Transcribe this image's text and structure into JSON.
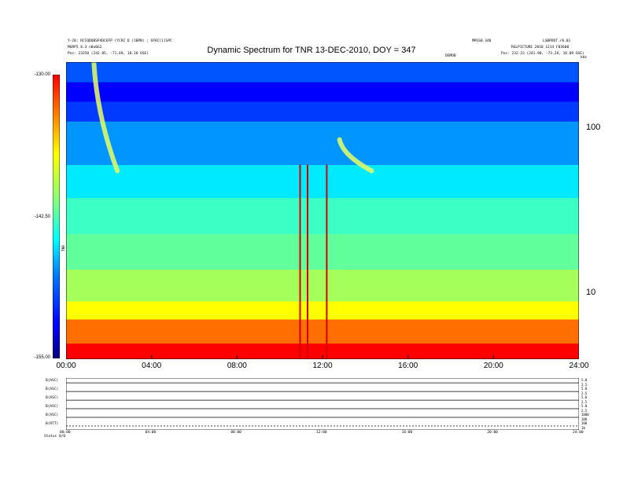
{
  "header": {
    "left_line1": "Y-20: RCIQDOBSP4DC6FP (YCRI D (1BPN) ; OFKC[1]SPC",
    "left_line2": "MGRP5 8.3 n0u0G2",
    "left_line3": "Pos: 23250 (242.85, -71.69, 18.18 OSE)",
    "center_small": "DEMOB",
    "right_line1_a": "MPGS0.340",
    "right_line1_b": "LSBPDOT.r0.01",
    "right_line2": "RGLPICTURE 2010 1214 F03600",
    "right_line3": "Pos: 232.23 (241.90, -73.28, 18.09 GSE)",
    "right_unit": "kHz"
  },
  "chart_data": {
    "type": "heatmap",
    "title": "Dynamic Spectrum for TNR 13-DEC-2010, DOY = 347",
    "x": {
      "unit": "hours",
      "range": [
        0,
        24
      ],
      "tick_labels": [
        "00:00",
        "04:00",
        "08:00",
        "12:00",
        "16:00",
        "20:00",
        "24:00"
      ],
      "tick_values": [
        0,
        4,
        8,
        12,
        16,
        20,
        24
      ]
    },
    "y": {
      "scale": "log",
      "unit": "kHz",
      "range": [
        4,
        250
      ],
      "tick_labels": [
        "100",
        "10"
      ],
      "tick_values": [
        100,
        10
      ]
    },
    "colorbar": {
      "label": "TNR",
      "range": [
        -155.0,
        -130.0
      ],
      "tick_labels": [
        "-130.00",
        "-142.50",
        "-155.00"
      ],
      "tick_values": [
        -130,
        -142.5,
        -155
      ],
      "colors": [
        "#000080",
        "#0000ff",
        "#0080ff",
        "#00ffff",
        "#80ff80",
        "#ffff00",
        "#ff8000",
        "#ff0000"
      ]
    },
    "bands": [
      {
        "f_from": 4,
        "f_to": 5,
        "level": -130
      },
      {
        "f_from": 5,
        "f_to": 7,
        "level": -133
      },
      {
        "f_from": 7,
        "f_to": 9,
        "level": -137
      },
      {
        "f_from": 9,
        "f_to": 14,
        "level": -140
      },
      {
        "f_from": 14,
        "f_to": 23,
        "level": -142
      },
      {
        "f_from": 23,
        "f_to": 38,
        "level": -143
      },
      {
        "f_from": 38,
        "f_to": 60,
        "level": -145
      },
      {
        "f_from": 60,
        "f_to": 110,
        "level": -147
      },
      {
        "f_from": 110,
        "f_to": 145,
        "level": -150
      },
      {
        "f_from": 145,
        "f_to": 190,
        "level": -152
      },
      {
        "f_from": 190,
        "f_to": 250,
        "level": -149
      }
    ],
    "features": [
      {
        "kind": "vertical_burst",
        "t": 10.95,
        "f_from": 4,
        "f_to": 60
      },
      {
        "kind": "vertical_burst",
        "t": 11.3,
        "f_from": 4,
        "f_to": 60
      },
      {
        "kind": "vertical_burst",
        "t": 12.2,
        "f_from": 4,
        "f_to": 60
      },
      {
        "kind": "type_iii_burst",
        "t_start": 1.3,
        "t_end": 2.4,
        "f_from": 250,
        "f_to": 55
      },
      {
        "kind": "type_iii_burst",
        "t_start": 12.8,
        "t_end": 14.3,
        "f_from": 85,
        "f_to": 55
      }
    ]
  },
  "panels": [
    {
      "label": "B(ASC)",
      "right_labels": [
        "5.0",
        "2.5"
      ]
    },
    {
      "label": "B(ASC)",
      "right_labels": [
        "5.0",
        "2.5"
      ]
    },
    {
      "label": "B(ASC)",
      "right_labels": [
        "5.0",
        "2.5"
      ]
    },
    {
      "label": "B(ASC)",
      "right_labels": [
        "5.0",
        "2.5"
      ]
    },
    {
      "label": "B(ASC)",
      "right_labels": [
        "1000",
        "100"
      ]
    },
    {
      "label": "B(RTT)",
      "right_labels": [
        "100",
        "10"
      ]
    }
  ],
  "bottom_axis": {
    "tick_labels": [
      "00:00",
      "04:00",
      "08:00",
      "12:00",
      "16:00",
      "20:00",
      "24:00"
    ],
    "footer_label": "Status",
    "footer_value": "0/0"
  }
}
